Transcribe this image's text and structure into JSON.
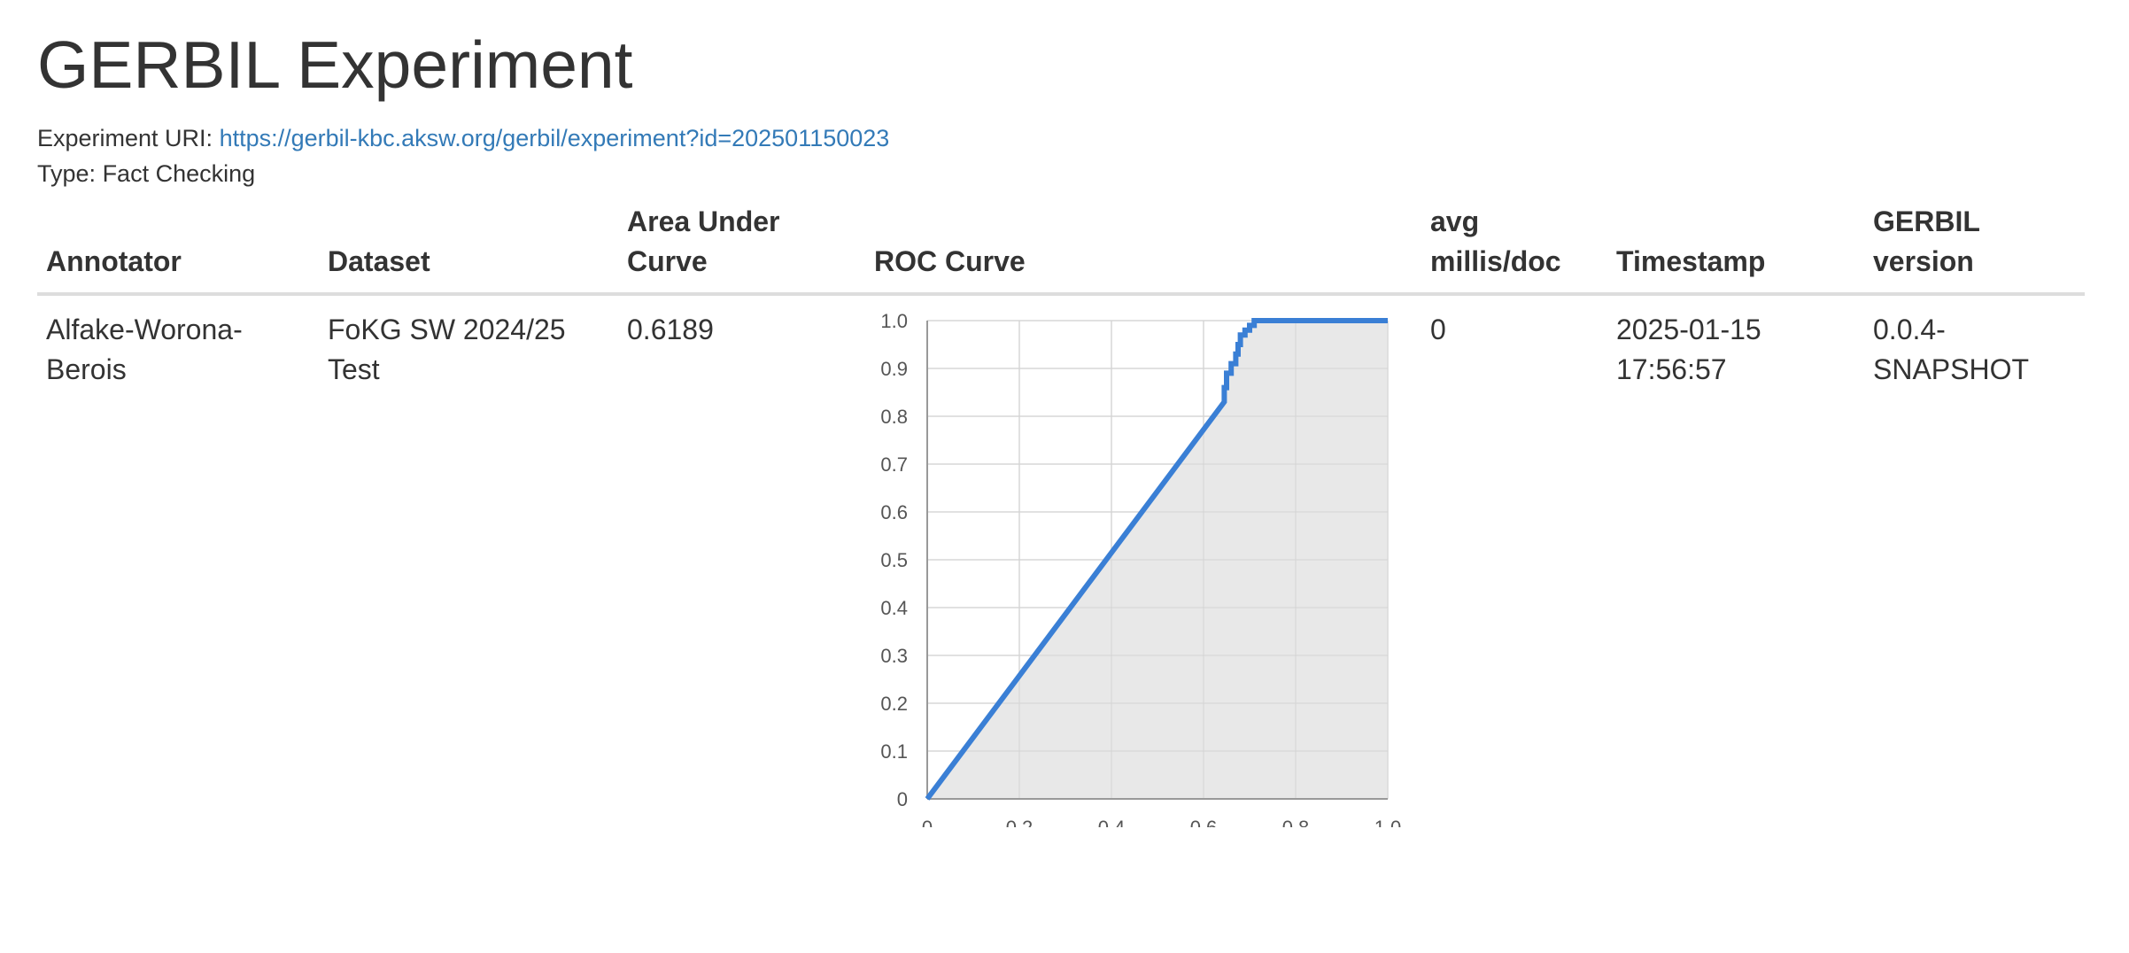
{
  "page": {
    "title": "GERBIL Experiment",
    "uri_label": "Experiment URI:",
    "uri": "https://gerbil-kbc.aksw.org/gerbil/experiment?id=202501150023",
    "type_label": "Type:",
    "type_value": "Fact Checking"
  },
  "table": {
    "headers": {
      "annotator": "Annotator",
      "dataset": "Dataset",
      "auc": "Area Under Curve",
      "roc": "ROC Curve",
      "millis": "avg millis/doc",
      "timestamp": "Timestamp",
      "version": "GERBIL version"
    },
    "row": {
      "annotator": "Alfake-Worona-Berois",
      "dataset": "FoKG SW 2024/25 Test",
      "auc": "0.6189",
      "millis": "0",
      "timestamp": "2025-01-15 17:56:57",
      "version": "0.0.4-SNAPSHOT"
    }
  },
  "chart_data": {
    "type": "area",
    "title": "",
    "xlabel": "",
    "ylabel": "",
    "xlim": [
      0,
      1
    ],
    "ylim": [
      0,
      1
    ],
    "x_ticks": [
      "0",
      "0.2",
      "0.4",
      "0.6",
      "0.8",
      "1.0"
    ],
    "y_ticks": [
      "0",
      "0.1",
      "0.2",
      "0.3",
      "0.4",
      "0.5",
      "0.6",
      "0.7",
      "0.8",
      "0.9",
      "1.0"
    ],
    "grid": true,
    "line_color": "#3a7fd5",
    "fill_color": "#e4e4e4",
    "series": [
      {
        "x": [
          0,
          0.645,
          0.645,
          0.65,
          0.65,
          0.66,
          0.66,
          0.67,
          0.67,
          0.675,
          0.675,
          0.68,
          0.68,
          0.69,
          0.69,
          0.7,
          0.7,
          0.71,
          0.71,
          0.72,
          1.0
        ],
        "y": [
          0,
          0.83,
          0.86,
          0.86,
          0.89,
          0.89,
          0.91,
          0.91,
          0.93,
          0.93,
          0.95,
          0.95,
          0.97,
          0.97,
          0.98,
          0.98,
          0.99,
          0.99,
          1.0,
          1.0,
          1.0
        ]
      }
    ]
  }
}
